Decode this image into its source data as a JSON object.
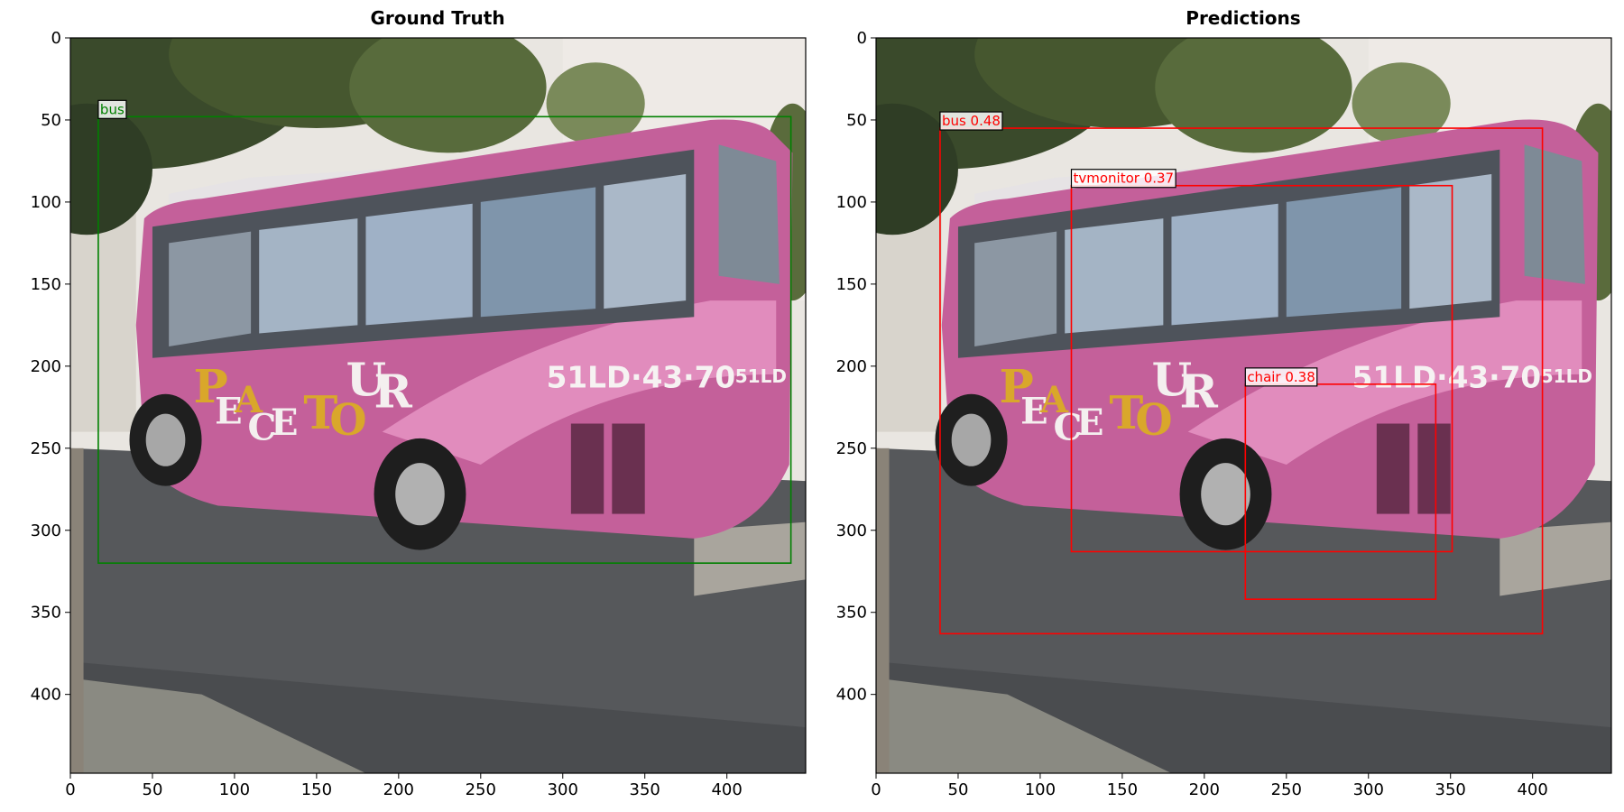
{
  "panels": [
    {
      "title": "Ground Truth",
      "box_color": "#008000",
      "boxes": [
        {
          "label": "bus",
          "x1": 17,
          "y1": 48,
          "x2": 439,
          "y2": 320
        }
      ]
    },
    {
      "title": "Predictions",
      "box_color": "#ff0000",
      "boxes": [
        {
          "label": "bus 0.48",
          "x1": 39,
          "y1": 55,
          "x2": 406,
          "y2": 363
        },
        {
          "label": "tvmonitor 0.37",
          "x1": 119,
          "y1": 90,
          "x2": 351,
          "y2": 313
        },
        {
          "label": "chair 0.38",
          "x1": 225,
          "y1": 211,
          "x2": 341,
          "y2": 342
        }
      ]
    }
  ],
  "axes": {
    "xlim": [
      0,
      448
    ],
    "ylim": [
      448,
      0
    ],
    "xticks": [
      0,
      50,
      100,
      150,
      200,
      250,
      300,
      350,
      400
    ],
    "yticks": [
      0,
      50,
      100,
      150,
      200,
      250,
      300,
      350,
      400
    ]
  },
  "image": {
    "description_colors": {
      "sky": "#eae6e0",
      "tree": "#3b4a2c",
      "bus_body": "#c8649e",
      "bus_light": "#e48ec0",
      "window": "#4a4e57",
      "road": "#55575a",
      "curb": "#a8a49c",
      "wheel": "#1e1e1e",
      "letter_gold": "#d9a72b",
      "letter_white": "#f6f2f2"
    }
  }
}
